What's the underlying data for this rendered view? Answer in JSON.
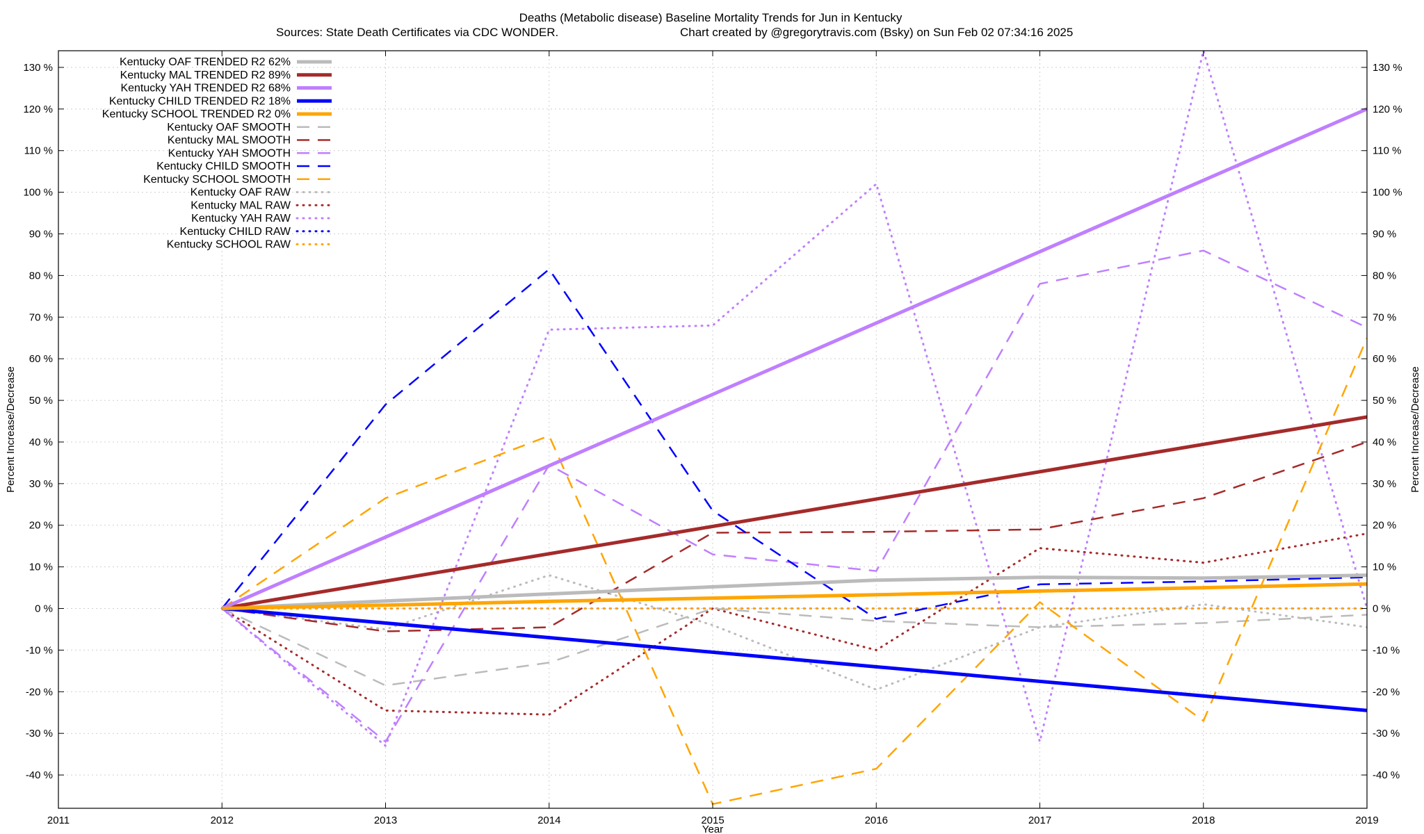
{
  "chart_data": {
    "type": "line",
    "title": "Deaths (Metabolic disease)  Baseline Mortality Trends for Jun in Kentucky",
    "subtitle_left": "Sources: State Death Certificates via CDC WONDER.",
    "subtitle_right": "Chart created by @gregorytravis.com (Bsky) on Sun Feb 02 07:34:16 2025",
    "xlabel": "Year",
    "ylabel_left": "Percent Increase/Decrease",
    "ylabel_right": "Percent Increase/Decrease",
    "xlim": [
      2011,
      2019
    ],
    "ylim": [
      -48,
      134
    ],
    "grid": true,
    "legend_position": "top-left",
    "x_ticks": [
      {
        "value": 2011,
        "label": "2011"
      },
      {
        "value": 2012,
        "label": "2012"
      },
      {
        "value": 2013,
        "label": "2013"
      },
      {
        "value": 2014,
        "label": "2014"
      },
      {
        "value": 2015,
        "label": "2015"
      },
      {
        "value": 2016,
        "label": "2016"
      },
      {
        "value": 2017,
        "label": "2017"
      },
      {
        "value": 2018,
        "label": "2018"
      },
      {
        "value": 2019,
        "label": "2019"
      }
    ],
    "y_ticks": [
      {
        "value": 130,
        "label": "130 %"
      },
      {
        "value": 120,
        "label": "120 %"
      },
      {
        "value": 110,
        "label": "110 %"
      },
      {
        "value": 100,
        "label": "100 %"
      },
      {
        "value": 90,
        "label": "90 %"
      },
      {
        "value": 80,
        "label": "80 %"
      },
      {
        "value": 70,
        "label": "70 %"
      },
      {
        "value": 60,
        "label": "60 %"
      },
      {
        "value": 50,
        "label": "50 %"
      },
      {
        "value": 40,
        "label": "40 %"
      },
      {
        "value": 30,
        "label": "30 %"
      },
      {
        "value": 20,
        "label": "20 %"
      },
      {
        "value": 10,
        "label": "10 %"
      },
      {
        "value": 0,
        "label": "0 %"
      },
      {
        "value": -10,
        "label": "-10 %"
      },
      {
        "value": -20,
        "label": "-20 %"
      },
      {
        "value": -30,
        "label": "-30 %"
      },
      {
        "value": -40,
        "label": "-40 %"
      }
    ],
    "series": [
      {
        "name": "Kentucky OAF TRENDED R2  62%",
        "style": "solid",
        "color": "#bbbbbb",
        "x": [
          2012,
          2013,
          2014,
          2015,
          2016,
          2017,
          2018,
          2019
        ],
        "y": [
          0,
          1.8,
          3.5,
          5.2,
          6.8,
          7.5,
          7.3,
          8.0
        ]
      },
      {
        "name": "Kentucky MAL TRENDED R2  89%",
        "style": "solid",
        "color": "#a52a2a",
        "x": [
          2012,
          2019
        ],
        "y": [
          0,
          46
        ]
      },
      {
        "name": "Kentucky YAH TRENDED R2  68%",
        "style": "solid",
        "color": "#bf7fff",
        "x": [
          2012,
          2019
        ],
        "y": [
          0,
          120
        ]
      },
      {
        "name": "Kentucky CHILD TRENDED R2  18%",
        "style": "solid",
        "color": "#0000ff",
        "x": [
          2012,
          2019
        ],
        "y": [
          0,
          -24.5
        ]
      },
      {
        "name": "Kentucky SCHOOL TRENDED R2  0%",
        "style": "solid",
        "color": "#ffa500",
        "x": [
          2012,
          2013,
          2014,
          2015,
          2016,
          2017,
          2018,
          2019
        ],
        "y": [
          0,
          0.8,
          1.7,
          2.5,
          3.3,
          4.2,
          5.0,
          5.9
        ]
      },
      {
        "name": "Kentucky OAF SMOOTH",
        "style": "dash",
        "color": "#bbbbbb",
        "x": [
          2012,
          2013,
          2014,
          2015,
          2016,
          2017,
          2018,
          2019
        ],
        "y": [
          0,
          -18.5,
          -13,
          0,
          -3,
          -4.5,
          -3.5,
          -1.5
        ]
      },
      {
        "name": "Kentucky MAL SMOOTH",
        "style": "dash",
        "color": "#a52a2a",
        "x": [
          2012,
          2013,
          2014,
          2015,
          2016,
          2017,
          2018,
          2019
        ],
        "y": [
          0,
          -5.5,
          -4.5,
          18.2,
          18.4,
          19,
          26.5,
          40
        ]
      },
      {
        "name": "Kentucky YAH SMOOTH",
        "style": "dash",
        "color": "#bf7fff",
        "x": [
          2012,
          2013,
          2014,
          2015,
          2016,
          2017,
          2018,
          2019
        ],
        "y": [
          0,
          -32,
          34.5,
          13,
          9,
          78,
          86,
          67.5
        ]
      },
      {
        "name": "Kentucky CHILD SMOOTH",
        "style": "dash",
        "color": "#0000ff",
        "x": [
          2012,
          2013,
          2014,
          2015,
          2016,
          2017,
          2018,
          2019
        ],
        "y": [
          0,
          49,
          81.5,
          23.5,
          -2.5,
          5.8,
          6.5,
          7.5
        ]
      },
      {
        "name": "Kentucky SCHOOL SMOOTH",
        "style": "dash",
        "color": "#ffa500",
        "x": [
          2012,
          2013,
          2014,
          2015,
          2016,
          2017,
          2018,
          2019
        ],
        "y": [
          0,
          26.5,
          41.5,
          -47,
          -38.5,
          1.5,
          -27,
          65
        ]
      },
      {
        "name": "Kentucky OAF RAW",
        "style": "dot",
        "color": "#bbbbbb",
        "x": [
          2012,
          2013,
          2014,
          2015,
          2016,
          2017,
          2018,
          2019
        ],
        "y": [
          0,
          -5,
          8,
          -4,
          -19.5,
          -4.5,
          1,
          -4.5
        ]
      },
      {
        "name": "Kentucky MAL RAW",
        "style": "dot",
        "color": "#a52a2a",
        "x": [
          2012,
          2013,
          2014,
          2015,
          2016,
          2017,
          2018,
          2019
        ],
        "y": [
          0,
          -24.5,
          -25.5,
          0,
          -10,
          14.5,
          11,
          18
        ]
      },
      {
        "name": "Kentucky YAH RAW",
        "style": "dot",
        "color": "#bf7fff",
        "x": [
          2012,
          2013,
          2014,
          2015,
          2016,
          2017,
          2018,
          2019
        ],
        "y": [
          0,
          -33,
          67,
          68,
          102,
          -32,
          134,
          0
        ]
      },
      {
        "name": "Kentucky CHILD RAW",
        "style": "dot",
        "color": "#0000ff",
        "x": [
          2012,
          2013,
          2014,
          2015,
          2016,
          2017,
          2018,
          2019
        ],
        "y": [
          0,
          0,
          0,
          0,
          0,
          0,
          0,
          0
        ]
      },
      {
        "name": "Kentucky SCHOOL RAW",
        "style": "dot",
        "color": "#ffa500",
        "x": [
          2012,
          2019
        ],
        "y": [
          0,
          0
        ]
      }
    ]
  }
}
